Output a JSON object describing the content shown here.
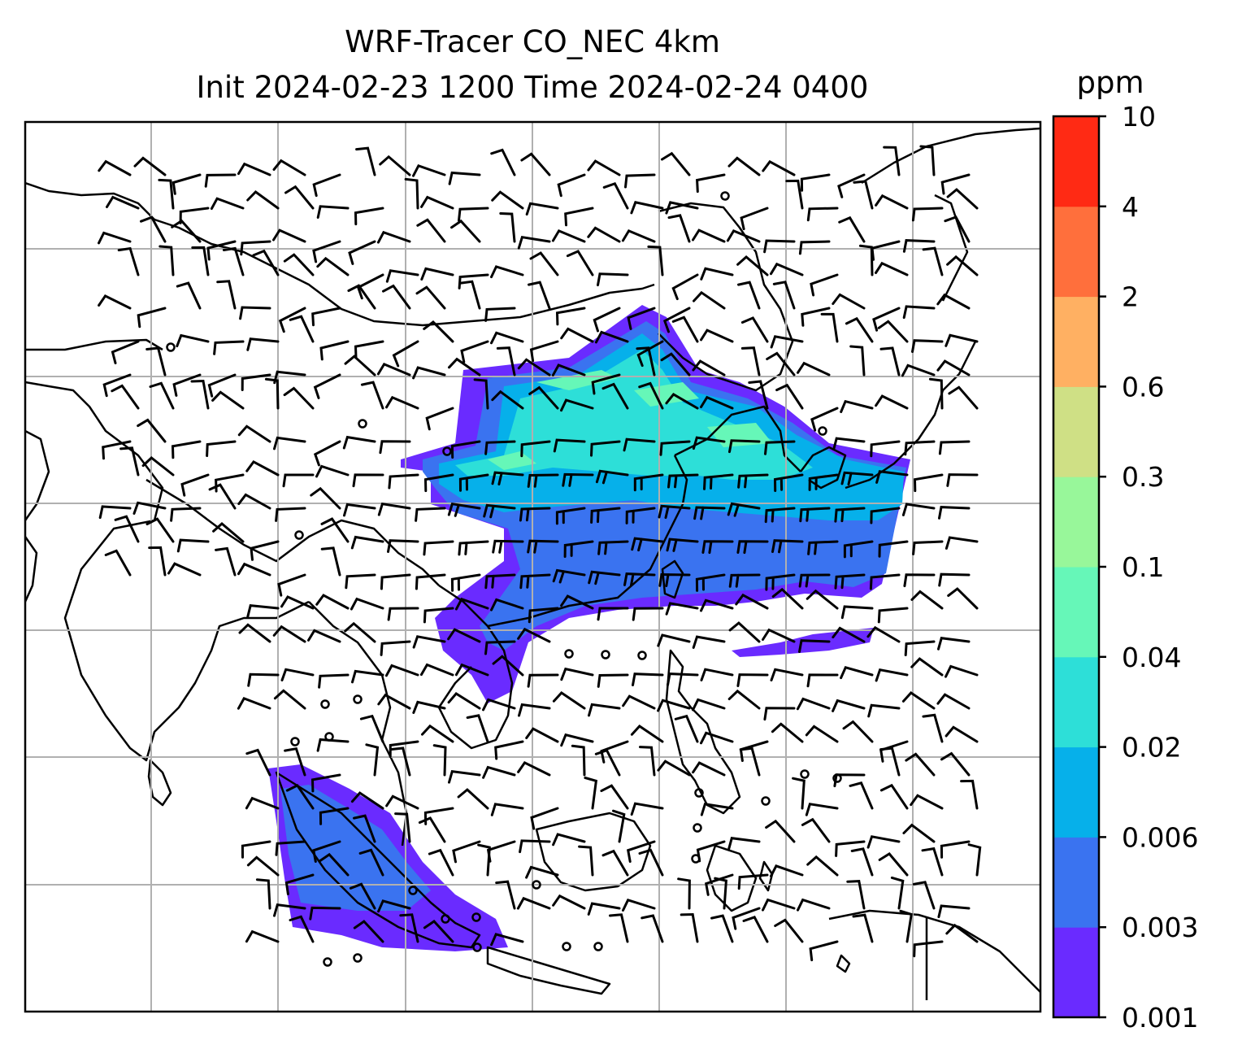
{
  "title": {
    "line1": "WRF-Tracer CO_NEC 4km",
    "line2": "Init 2024-02-23 1200 Time 2024-02-24 0400"
  },
  "colorbar": {
    "unit": "ppm",
    "levels": [
      "0.001",
      "0.003",
      "0.006",
      "0.02",
      "0.04",
      "0.1",
      "0.3",
      "0.6",
      "2",
      "4",
      "10"
    ],
    "colors": [
      "#6a2bff",
      "#3a73f0",
      "#06b0ea",
      "#2ddfd8",
      "#66f7b8",
      "#98f79a",
      "#cfe085",
      "#ffb062",
      "#ff6f3c",
      "#ff2a14"
    ]
  },
  "map": {
    "grid": true,
    "gridlines_x": 7,
    "gridlines_y": 6,
    "plume_colors": {
      "0.001": "#6a2bff",
      "0.003": "#3a73f0",
      "0.006": "#06b0ea",
      "0.02": "#2ddfd8",
      "0.04": "#66f7b8"
    },
    "wind_barbs": true,
    "coastlines": true
  }
}
